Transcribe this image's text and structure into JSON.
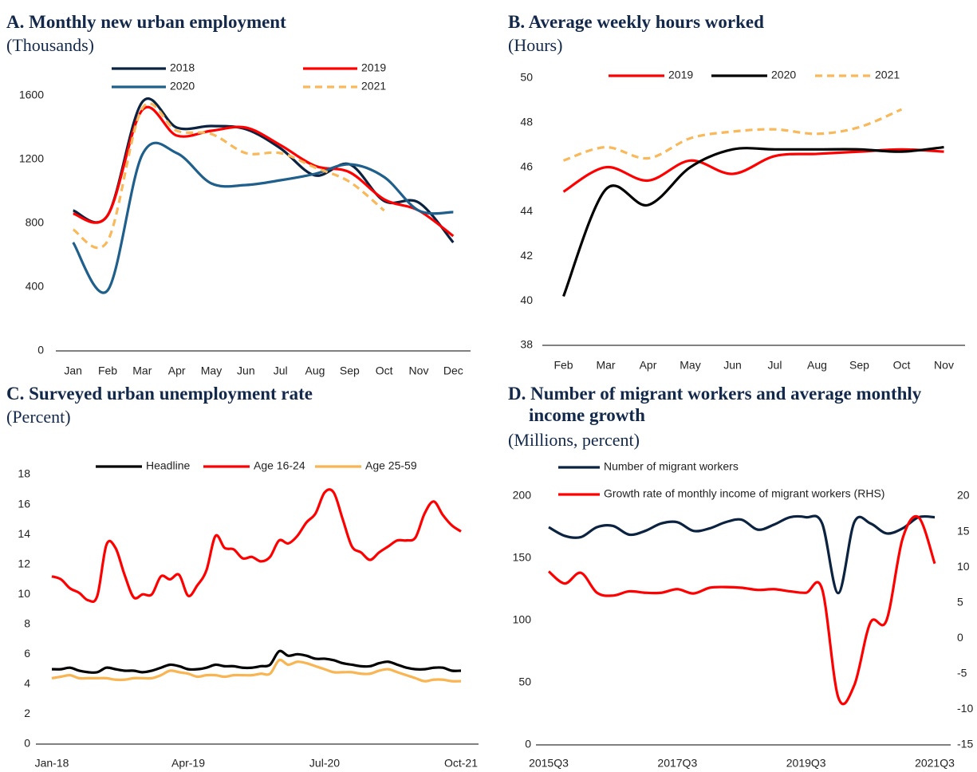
{
  "chart_data": [
    {
      "type": "line",
      "title": "A. Monthly new urban employment",
      "subtitle": "(Thousands)",
      "categories": [
        "Jan",
        "Feb",
        "Mar",
        "Apr",
        "May",
        "Jun",
        "Jul",
        "Aug",
        "Sep",
        "Oct",
        "Nov",
        "Dec"
      ],
      "series": [
        {
          "name": "2018",
          "color": "#0b2341",
          "values": [
            880,
            850,
            1560,
            1400,
            1410,
            1390,
            1270,
            1100,
            1170,
            940,
            930,
            680
          ]
        },
        {
          "name": "2019",
          "color": "#ff0000",
          "values": [
            860,
            850,
            1510,
            1350,
            1380,
            1400,
            1290,
            1160,
            1120,
            950,
            880,
            720
          ]
        },
        {
          "name": "2020",
          "color": "#1f5f8b",
          "values": [
            680,
            380,
            1230,
            1240,
            1050,
            1040,
            1070,
            1110,
            1170,
            1090,
            880,
            870
          ]
        },
        {
          "name": "2021",
          "color": "#f9b859",
          "dashed": true,
          "values": [
            760,
            690,
            1520,
            1380,
            1360,
            1240,
            1240,
            1150,
            1060,
            880,
            null,
            null
          ]
        }
      ],
      "ylim": [
        0,
        1800
      ],
      "yticks": [
        0,
        400,
        800,
        1200,
        1600
      ]
    },
    {
      "type": "line",
      "title": "B. Average weekly hours worked",
      "subtitle": "(Hours)",
      "categories": [
        "Feb",
        "Mar",
        "Apr",
        "May",
        "Jun",
        "Jul",
        "Aug",
        "Sep",
        "Oct",
        "Nov"
      ],
      "series": [
        {
          "name": "2019",
          "color": "#ff0000",
          "values": [
            44.9,
            46.0,
            45.4,
            46.3,
            45.7,
            46.5,
            46.6,
            46.7,
            46.8,
            46.7
          ]
        },
        {
          "name": "2020",
          "color": "#000000",
          "values": [
            40.2,
            45.0,
            44.3,
            46.0,
            46.8,
            46.8,
            46.8,
            46.8,
            46.7,
            46.9
          ]
        },
        {
          "name": "2021",
          "color": "#f9b859",
          "dashed": true,
          "values": [
            46.3,
            46.9,
            46.4,
            47.3,
            47.6,
            47.7,
            47.5,
            47.8,
            48.6,
            null
          ]
        }
      ],
      "ylim": [
        38,
        50
      ],
      "yticks": [
        38,
        40,
        42,
        44,
        46,
        48,
        50
      ]
    },
    {
      "type": "line",
      "title": "C. Surveyed urban unemployment rate",
      "subtitle": "(Percent)",
      "categories": [
        "Jan-18",
        null,
        null,
        null,
        null,
        null,
        null,
        null,
        null,
        null,
        null,
        null,
        null,
        null,
        null,
        "Apr-19",
        null,
        null,
        null,
        null,
        null,
        null,
        null,
        null,
        null,
        null,
        null,
        null,
        null,
        null,
        "Jul-20",
        null,
        null,
        null,
        null,
        null,
        null,
        null,
        null,
        null,
        null,
        null,
        null,
        null,
        null,
        "Oct-21"
      ],
      "series": [
        {
          "name": "Headline",
          "color": "#000000",
          "values": [
            5.0,
            5.0,
            5.1,
            4.9,
            4.8,
            4.8,
            5.1,
            5.0,
            4.9,
            4.9,
            4.8,
            4.9,
            5.1,
            5.3,
            5.2,
            5.0,
            5.0,
            5.1,
            5.3,
            5.2,
            5.2,
            5.1,
            5.1,
            5.2,
            5.3,
            6.2,
            5.9,
            6.0,
            5.9,
            5.7,
            5.7,
            5.6,
            5.4,
            5.3,
            5.2,
            5.2,
            5.4,
            5.5,
            5.3,
            5.1,
            5.0,
            5.0,
            5.1,
            5.1,
            4.9,
            4.9
          ]
        },
        {
          "name": "Age 16-24",
          "color": "#ff0000",
          "values": [
            11.2,
            11.0,
            10.4,
            10.1,
            9.6,
            9.9,
            13.3,
            13.1,
            11.3,
            9.8,
            10.0,
            10.0,
            11.2,
            11.0,
            11.3,
            9.9,
            10.6,
            11.6,
            13.9,
            13.1,
            13.0,
            12.4,
            12.5,
            12.2,
            12.5,
            13.6,
            13.4,
            13.9,
            14.8,
            15.4,
            16.8,
            16.8,
            15.0,
            13.2,
            12.8,
            12.3,
            12.8,
            13.2,
            13.6,
            13.6,
            13.8,
            15.4,
            16.2,
            15.3,
            14.6,
            14.2
          ]
        },
        {
          "name": "Age 25-59",
          "color": "#f8b552",
          "values": [
            4.4,
            4.5,
            4.6,
            4.4,
            4.4,
            4.4,
            4.4,
            4.3,
            4.3,
            4.4,
            4.4,
            4.4,
            4.6,
            4.9,
            4.8,
            4.7,
            4.5,
            4.6,
            4.6,
            4.5,
            4.6,
            4.6,
            4.6,
            4.7,
            4.7,
            5.6,
            5.3,
            5.5,
            5.4,
            5.2,
            5.0,
            4.8,
            4.8,
            4.8,
            4.7,
            4.7,
            4.9,
            5.0,
            4.8,
            4.6,
            4.4,
            4.2,
            4.3,
            4.3,
            4.2,
            4.2
          ]
        }
      ],
      "ylim": [
        0,
        18
      ],
      "yticks": [
        0,
        2,
        4,
        6,
        8,
        10,
        12,
        14,
        16,
        18
      ]
    },
    {
      "type": "line",
      "title": "D. Number of migrant workers and average monthly income growth",
      "subtitle": "(Millions, percent)",
      "categories": [
        "2015Q3",
        null,
        null,
        null,
        null,
        null,
        null,
        null,
        "2017Q3",
        null,
        null,
        null,
        null,
        null,
        null,
        null,
        "2019Q3",
        null,
        null,
        null,
        null,
        null,
        null,
        null,
        "2021Q3"
      ],
      "series": [
        {
          "name": "Number of migrant workers",
          "color": "#0b2341",
          "values": [
            175,
            168,
            167,
            175,
            176,
            169,
            172,
            178,
            179,
            172,
            174,
            179,
            181,
            173,
            177,
            183,
            183,
            178,
            122,
            179,
            178,
            170,
            174,
            183,
            183
          ]
        },
        {
          "name": "Growth rate of monthly income of migrant workers (RHS)",
          "color": "#ff0000",
          "axis": "y2",
          "values": [
            9.4,
            7.7,
            9.2,
            6.4,
            6.0,
            6.6,
            6.4,
            6.4,
            6.9,
            6.3,
            7.1,
            7.2,
            7.1,
            6.8,
            6.9,
            6.6,
            6.4,
            6.9,
            -8.3,
            -6.6,
            2.2,
            2.5,
            14.0,
            17.0,
            10.5
          ]
        }
      ],
      "ylim": [
        0,
        200
      ],
      "yticks": [
        0,
        50,
        100,
        150,
        200
      ],
      "y2lim": [
        -15,
        20
      ],
      "y2ticks": [
        -15,
        -10,
        -5,
        0,
        5,
        10,
        15,
        20
      ]
    }
  ]
}
